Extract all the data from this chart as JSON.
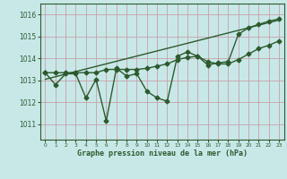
{
  "xlabel": "Graphe pression niveau de la mer (hPa)",
  "background_color": "#c8e8e8",
  "grid_color": "#c8a0a8",
  "line_color": "#2d5a2d",
  "xlim": [
    -0.5,
    23.5
  ],
  "ylim": [
    1010.3,
    1016.5
  ],
  "yticks": [
    1011,
    1012,
    1013,
    1014,
    1015,
    1016
  ],
  "xticks": [
    0,
    1,
    2,
    3,
    4,
    5,
    6,
    7,
    8,
    9,
    10,
    11,
    12,
    13,
    14,
    15,
    16,
    17,
    18,
    19,
    20,
    21,
    22,
    23
  ],
  "series1_x": [
    0,
    1,
    2,
    3,
    4,
    5,
    6,
    7,
    8,
    9,
    10,
    11,
    12,
    13,
    14,
    15,
    16,
    17,
    18,
    19,
    20,
    21,
    22,
    23
  ],
  "series1_y": [
    1013.35,
    1012.8,
    1013.3,
    1013.3,
    1012.2,
    1013.05,
    1011.15,
    1013.55,
    1013.2,
    1013.3,
    1012.5,
    1012.2,
    1012.05,
    1014.1,
    1014.3,
    1014.1,
    1013.7,
    1013.8,
    1013.85,
    1015.1,
    1015.4,
    1015.55,
    1015.7,
    1015.8
  ],
  "series2_x": [
    0,
    1,
    2,
    3,
    4,
    5,
    6,
    7,
    8,
    9,
    10,
    11,
    12,
    13,
    14,
    15,
    16,
    17,
    18,
    19,
    20,
    21,
    22,
    23
  ],
  "series2_y": [
    1013.35,
    1013.35,
    1013.35,
    1013.35,
    1013.35,
    1013.35,
    1013.5,
    1013.5,
    1013.5,
    1013.5,
    1013.55,
    1013.65,
    1013.75,
    1013.95,
    1014.05,
    1014.1,
    1013.85,
    1013.75,
    1013.75,
    1013.95,
    1014.2,
    1014.45,
    1014.6,
    1014.8
  ],
  "trend_x": [
    0,
    23
  ],
  "trend_y": [
    1013.05,
    1015.75
  ],
  "marker": "D",
  "marker_size": 2.5,
  "linewidth": 1.0
}
